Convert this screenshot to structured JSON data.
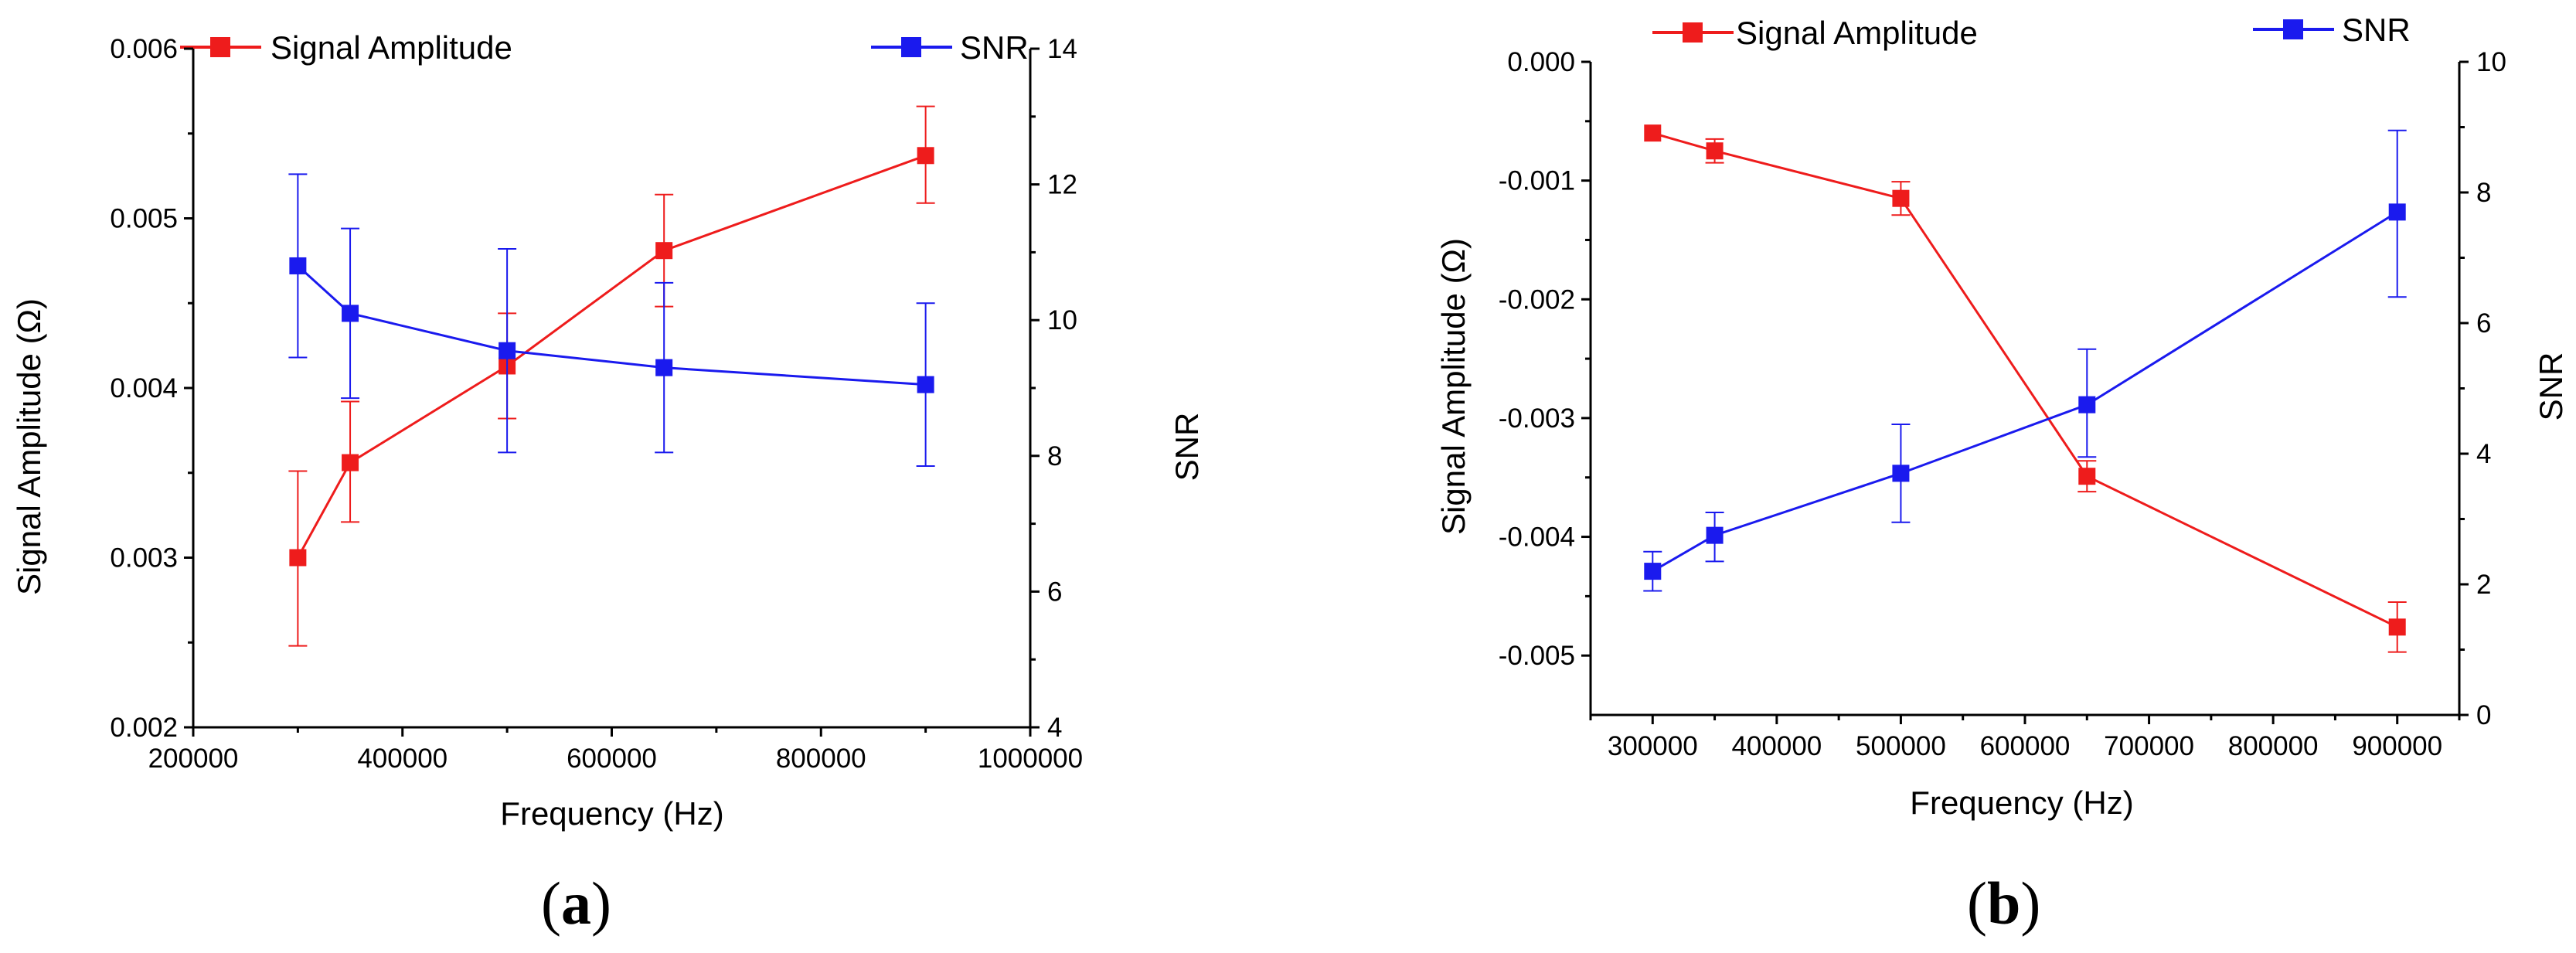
{
  "colors": {
    "amplitude": "#ee1c1c",
    "snr": "#1a1aee",
    "axis": "#000000"
  },
  "chart_data": [
    {
      "type": "line",
      "panel_label": "a",
      "xlabel": "Frequency (Hz)",
      "ylabel": "Signal Amplitude (Ω)",
      "y2label": "SNR",
      "xlim": [
        200000,
        1000000
      ],
      "ylim": [
        0.002,
        0.006
      ],
      "y2lim": [
        4,
        14
      ],
      "x_ticks": [
        200000,
        400000,
        600000,
        800000,
        1000000
      ],
      "x_tick_labels": [
        "200000",
        "400000",
        "600000",
        "800000",
        "1000000"
      ],
      "y_ticks": [
        0.002,
        0.003,
        0.004,
        0.005,
        0.006
      ],
      "y_tick_labels": [
        "0.002",
        "0.003",
        "0.004",
        "0.005",
        "0.006"
      ],
      "y2_ticks": [
        4,
        6,
        8,
        10,
        12,
        14
      ],
      "y2_tick_labels": [
        "4",
        "6",
        "8",
        "10",
        "12",
        "14"
      ],
      "series": [
        {
          "name": "Signal Amplitude",
          "axis": "left",
          "color": "#ee1c1c",
          "x": [
            300000,
            350000,
            500000,
            650000,
            900000
          ],
          "values": [
            0.003,
            0.00356,
            0.00413,
            0.00481,
            0.00537
          ],
          "err_low": [
            0.00248,
            0.00321,
            0.00382,
            0.00448,
            0.00509
          ],
          "err_high": [
            0.00351,
            0.00392,
            0.00444,
            0.00514,
            0.00566
          ]
        },
        {
          "name": "SNR",
          "axis": "right",
          "color": "#1a1aee",
          "x": [
            300000,
            350000,
            500000,
            650000,
            900000
          ],
          "values": [
            10.8,
            10.1,
            9.55,
            9.3,
            9.05
          ],
          "err_low": [
            9.45,
            8.85,
            8.05,
            8.05,
            7.85
          ],
          "err_high": [
            12.15,
            11.35,
            11.05,
            10.55,
            10.25
          ]
        }
      ]
    },
    {
      "type": "line",
      "panel_label": "b",
      "xlabel": "Frequency (Hz)",
      "ylabel": "Signal Amplitude (Ω)",
      "y2label": "SNR",
      "xlim": [
        250000,
        950000
      ],
      "ylim": [
        -0.0055,
        0.0
      ],
      "y2lim": [
        0,
        10
      ],
      "x_ticks": [
        300000,
        400000,
        500000,
        600000,
        700000,
        800000,
        900000
      ],
      "x_tick_labels": [
        "300000",
        "400000",
        "500000",
        "600000",
        "700000",
        "800000",
        "900000"
      ],
      "y_ticks": [
        -0.005,
        -0.004,
        -0.003,
        -0.002,
        -0.001,
        0.0
      ],
      "y_tick_labels": [
        "-0.005",
        "-0.004",
        "-0.003",
        "-0.002",
        "-0.001",
        "0.000"
      ],
      "y2_ticks": [
        0,
        2,
        4,
        6,
        8,
        10
      ],
      "y2_tick_labels": [
        "0",
        "2",
        "4",
        "6",
        "8",
        "10"
      ],
      "series": [
        {
          "name": "Signal Amplitude",
          "axis": "left",
          "color": "#ee1c1c",
          "x": [
            300000,
            350000,
            500000,
            650000,
            900000
          ],
          "values": [
            -0.0006,
            -0.00075,
            -0.00115,
            -0.00349,
            -0.00476
          ],
          "err_low": [
            -0.0006,
            -0.00085,
            -0.00129,
            -0.00362,
            -0.00497
          ],
          "err_high": [
            -0.0006,
            -0.00065,
            -0.00101,
            -0.00336,
            -0.00455
          ]
        },
        {
          "name": "SNR",
          "axis": "right",
          "color": "#1a1aee",
          "x": [
            300000,
            350000,
            500000,
            650000,
            900000
          ],
          "values": [
            2.2,
            2.75,
            3.7,
            4.75,
            7.7
          ],
          "err_low": [
            1.9,
            2.35,
            2.95,
            3.95,
            6.4
          ],
          "err_high": [
            2.5,
            3.1,
            4.45,
            5.6,
            8.95
          ]
        }
      ]
    }
  ]
}
